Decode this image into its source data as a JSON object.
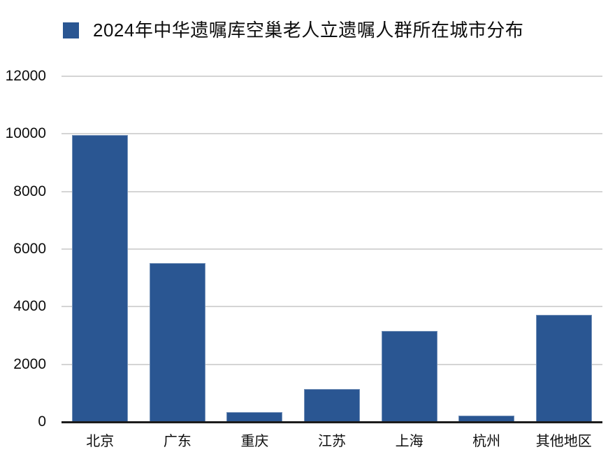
{
  "chart_data": {
    "type": "bar",
    "title": "2024年中华遗嘱库空巢老人立遗嘱人群所在城市分布",
    "categories": [
      "北京",
      "广东",
      "重庆",
      "江苏",
      "上海",
      "杭州",
      "其他地区"
    ],
    "values": [
      9960,
      5520,
      350,
      1150,
      3160,
      220,
      3720
    ],
    "xlabel": "",
    "ylabel": "",
    "ylim": [
      0,
      12000
    ],
    "yticks": [
      0,
      2000,
      4000,
      6000,
      8000,
      10000,
      12000
    ],
    "grid": true,
    "legend_position": "top-left"
  },
  "legend": {
    "label": "2024年中华遗嘱库空巢老人立遗嘱人群所在城市分布",
    "swatch_color": "#2a5692"
  },
  "colors": {
    "bar": "#2a5692",
    "gridline": "#d5d5d5",
    "axis_line": "#1c1c1c",
    "text": "#0d0d0d",
    "background": "#ffffff"
  }
}
